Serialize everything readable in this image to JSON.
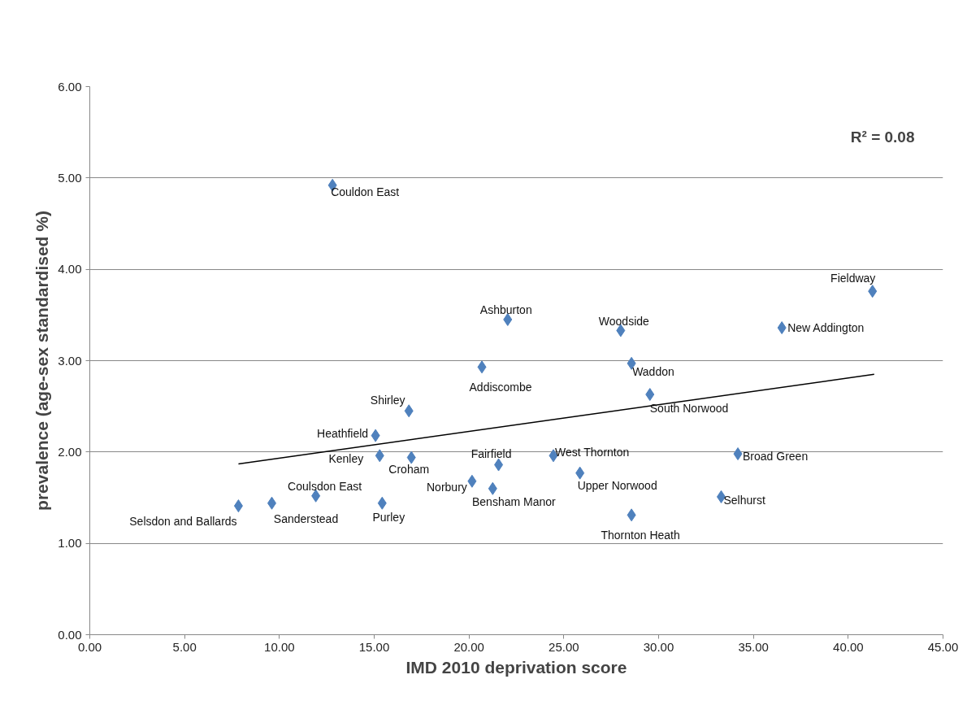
{
  "chart_data": {
    "type": "scatter",
    "xlabel": "IMD 2010 deprivation score",
    "ylabel": "prevalence (age-sex standardised %)",
    "xlim": [
      0,
      45
    ],
    "ylim": [
      0,
      6
    ],
    "xticks": [
      {
        "value": 0,
        "label": "0.00"
      },
      {
        "value": 5,
        "label": "5.00"
      },
      {
        "value": 10,
        "label": "10.00"
      },
      {
        "value": 15,
        "label": "15.00"
      },
      {
        "value": 20,
        "label": "20.00"
      },
      {
        "value": 25,
        "label": "25.00"
      },
      {
        "value": 30,
        "label": "30.00"
      },
      {
        "value": 35,
        "label": "35.00"
      },
      {
        "value": 40,
        "label": "40.00"
      },
      {
        "value": 45,
        "label": "45.00"
      }
    ],
    "yticks": [
      {
        "value": 0,
        "label": "0.00"
      },
      {
        "value": 1,
        "label": "1.00"
      },
      {
        "value": 2,
        "label": "2.00"
      },
      {
        "value": 3,
        "label": "3.00"
      },
      {
        "value": 4,
        "label": "4.00"
      },
      {
        "value": 5,
        "label": "5.00"
      },
      {
        "value": 6,
        "label": "6.00"
      }
    ],
    "grid": "y",
    "series": [
      {
        "color": "#4f81bd",
        "marker": "diamond",
        "x": [
          12.8,
          41.28,
          36.5,
          22.04,
          28.0,
          28.57,
          20.68,
          29.54,
          16.83,
          15.07,
          15.29,
          16.96,
          21.56,
          24.45,
          25.85,
          34.18,
          20.16,
          21.25,
          33.3,
          28.57,
          11.92,
          15.42,
          9.6,
          7.84
        ],
        "values": [
          4.92,
          3.76,
          3.36,
          3.45,
          3.33,
          2.97,
          2.93,
          2.63,
          2.45,
          2.18,
          1.96,
          1.94,
          1.86,
          1.96,
          1.77,
          1.98,
          1.68,
          1.6,
          1.51,
          1.31,
          1.52,
          1.44,
          1.44,
          1.41
        ]
      },
      {
        "type": "line",
        "color": "#000000",
        "x": [
          7.84,
          41.37
        ],
        "values": [
          1.87,
          2.85
        ]
      }
    ],
    "annotations": [
      {
        "text": "Couldon East",
        "x": 12.8,
        "y": 4.92
      },
      {
        "text": "Fieldway",
        "x": 41.28,
        "y": 3.76
      },
      {
        "text": "New Addington",
        "x": 36.5,
        "y": 3.36
      },
      {
        "text": "Ashburton",
        "x": 22.04,
        "y": 3.45
      },
      {
        "text": "Woodside",
        "x": 28.0,
        "y": 3.33
      },
      {
        "text": "Waddon",
        "x": 28.57,
        "y": 2.97
      },
      {
        "text": "Addiscombe",
        "x": 20.68,
        "y": 2.93
      },
      {
        "text": "South Norwood",
        "x": 29.54,
        "y": 2.63
      },
      {
        "text": "Shirley",
        "x": 16.83,
        "y": 2.45
      },
      {
        "text": "Heathfield",
        "x": 15.07,
        "y": 2.18
      },
      {
        "text": "Kenley",
        "x": 15.29,
        "y": 1.96
      },
      {
        "text": "Croham",
        "x": 16.96,
        "y": 1.94
      },
      {
        "text": "Fairfield",
        "x": 21.56,
        "y": 1.86
      },
      {
        "text": "West Thornton",
        "x": 24.45,
        "y": 1.96
      },
      {
        "text": "Upper Norwood",
        "x": 25.85,
        "y": 1.77
      },
      {
        "text": "Broad Green",
        "x": 34.18,
        "y": 1.98
      },
      {
        "text": "Norbury",
        "x": 20.16,
        "y": 1.68
      },
      {
        "text": "Bensham Manor",
        "x": 21.25,
        "y": 1.6
      },
      {
        "text": "Selhurst",
        "x": 33.3,
        "y": 1.51
      },
      {
        "text": "Thornton Heath",
        "x": 28.57,
        "y": 1.31
      },
      {
        "text": "Coulsdon East",
        "x": 11.92,
        "y": 1.52
      },
      {
        "text": "Purley",
        "x": 15.42,
        "y": 1.44
      },
      {
        "text": "Sanderstead",
        "x": 9.6,
        "y": 1.44
      },
      {
        "text": "Selsdon and Ballards",
        "x": 7.84,
        "y": 1.41
      },
      "R² = 0.08"
    ]
  }
}
